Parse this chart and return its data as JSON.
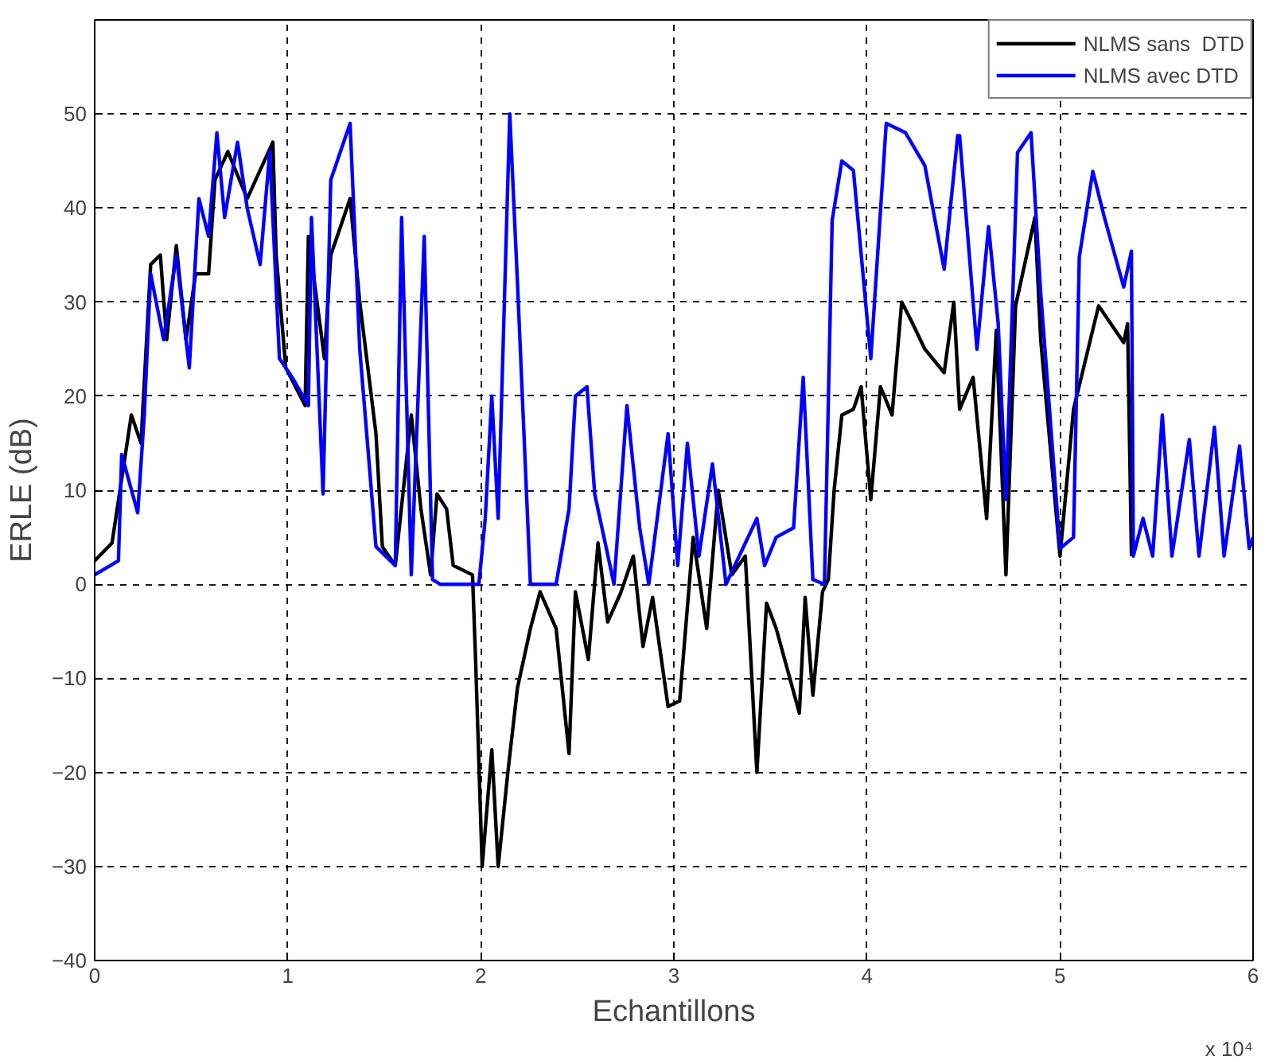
{
  "chart_data": {
    "type": "line",
    "xlabel": "Echantillons",
    "ylabel": "ERLE (dB)",
    "annotations": [
      "x 10⁴"
    ],
    "xlim": [
      0,
      6
    ],
    "xticks": [
      0,
      1,
      2,
      3,
      4,
      5,
      6
    ],
    "ylim": [
      -40,
      60
    ],
    "yticks": [
      -40,
      -30,
      -20,
      -10,
      0,
      10,
      20,
      30,
      40,
      50
    ],
    "grid": true,
    "legend": "top right",
    "line_style": "solid",
    "series": [
      {
        "name": "NLMS sans  DTD",
        "color": "#000000",
        "x": [
          0,
          0.09,
          0.19,
          0.24,
          0.29,
          0.34,
          0.373,
          0.423,
          0.473,
          0.523,
          0.59,
          0.623,
          0.69,
          0.79,
          0.923,
          0.94,
          0.99,
          1.09,
          1.107,
          1.19,
          1.223,
          1.323,
          1.373,
          1.457,
          1.49,
          1.557,
          1.64,
          1.69,
          1.74,
          1.773,
          1.823,
          1.857,
          1.957,
          1.973,
          2.007,
          2.057,
          2.09,
          2.14,
          2.19,
          2.257,
          2.307,
          2.39,
          2.457,
          2.49,
          2.557,
          2.607,
          2.657,
          2.723,
          2.79,
          2.84,
          2.89,
          2.97,
          3.03,
          3.1,
          3.17,
          3.23,
          3.3,
          3.37,
          3.43,
          3.48,
          3.53,
          3.65,
          3.68,
          3.72,
          3.77,
          3.8,
          3.83,
          3.87,
          3.93,
          3.97,
          4.02,
          4.07,
          4.13,
          4.18,
          4.23,
          4.3,
          4.4,
          4.45,
          4.48,
          4.55,
          4.62,
          4.67,
          4.72,
          4.77,
          4.87,
          4.9,
          5.0,
          5.07,
          5.2,
          5.33,
          5.35,
          5.37
        ],
        "values": [
          2.5,
          4.4,
          18,
          15,
          34,
          35,
          26,
          36,
          26,
          33,
          33,
          43,
          46,
          41,
          47,
          35,
          23,
          19,
          37,
          24,
          35,
          41,
          30,
          16,
          4,
          2,
          18,
          8,
          1,
          9.6,
          8,
          2,
          1,
          -8,
          -30,
          -17.6,
          -30,
          -20,
          -11,
          -4.7,
          -0.8,
          -4.7,
          -18,
          -0.8,
          -8,
          4.4,
          -4,
          -1,
          3,
          -6.6,
          -1.4,
          -13,
          -12.4,
          5,
          -4.7,
          10,
          1,
          3,
          -20,
          -2,
          -4.7,
          -13.7,
          -1.4,
          -11.8,
          -0.8,
          0.5,
          10,
          18,
          18.6,
          21,
          9,
          21,
          18,
          30,
          28,
          25,
          22.5,
          30,
          18.6,
          22,
          7,
          27,
          1,
          29.6,
          39,
          26,
          3,
          18.6,
          29.6,
          25.7,
          27.7,
          3
        ]
      },
      {
        "name": "NLMS avec DTD",
        "color": "#0000ff",
        "x": [
          0,
          0.123,
          0.14,
          0.223,
          0.257,
          0.29,
          0.357,
          0.423,
          0.49,
          0.54,
          0.59,
          0.633,
          0.673,
          0.74,
          0.79,
          0.857,
          0.907,
          0.957,
          1.023,
          1.107,
          1.123,
          1.183,
          1.223,
          1.323,
          1.373,
          1.457,
          1.557,
          1.59,
          1.64,
          1.707,
          1.75,
          1.79,
          1.99,
          2.023,
          2.057,
          2.09,
          2.15,
          2.19,
          2.257,
          2.39,
          2.457,
          2.49,
          2.55,
          2.59,
          2.69,
          2.757,
          2.823,
          2.87,
          2.97,
          3.02,
          3.07,
          3.13,
          3.2,
          3.27,
          3.43,
          3.47,
          3.53,
          3.62,
          3.67,
          3.72,
          3.78,
          3.82,
          3.87,
          3.93,
          4.02,
          4.1,
          4.2,
          4.3,
          4.4,
          4.47,
          4.48,
          4.57,
          4.63,
          4.68,
          4.72,
          4.78,
          4.85,
          4.9,
          5.0,
          5.07,
          5.1,
          5.17,
          5.23,
          5.33,
          5.37,
          5.38,
          5.43,
          5.48,
          5.53,
          5.58,
          5.67,
          5.72,
          5.8,
          5.85,
          5.93,
          5.98,
          6.0
        ],
        "values": [
          1,
          2.5,
          13.8,
          7.6,
          18,
          33,
          26,
          35,
          23,
          41,
          37,
          48,
          39,
          47,
          40,
          34,
          46,
          24,
          22,
          19,
          39,
          9.6,
          43,
          49,
          25,
          4,
          2,
          39,
          1,
          37,
          0.5,
          0,
          0,
          7,
          20,
          7,
          50,
          32,
          0,
          0,
          8,
          20,
          21,
          9.6,
          0,
          19,
          6,
          0,
          16,
          2,
          15,
          3,
          12.8,
          0,
          7,
          2,
          5,
          6,
          22,
          0.5,
          0,
          38.7,
          45,
          44,
          24,
          49,
          48,
          44.5,
          33.5,
          47.7,
          47.7,
          25,
          38,
          27.7,
          9,
          45.9,
          48,
          31,
          3.8,
          5,
          34.8,
          43.9,
          39,
          31.6,
          35.4,
          3,
          7,
          3,
          18,
          3,
          15.4,
          3,
          16.7,
          3,
          14.7,
          3.8,
          5
        ]
      }
    ]
  }
}
